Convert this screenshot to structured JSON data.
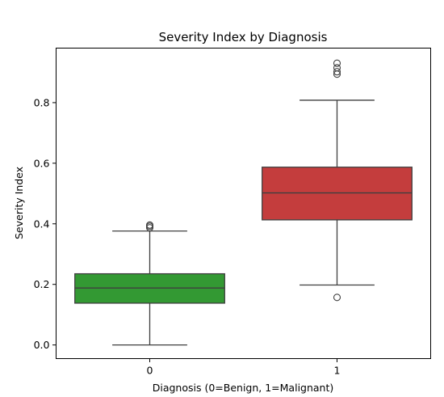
{
  "chart_data": {
    "type": "box",
    "title": "Severity Index by Diagnosis",
    "xlabel": "Diagnosis (0=Benign, 1=Malignant)",
    "ylabel": "Severity Index",
    "categories": [
      "0",
      "1"
    ],
    "ylim": [
      -0.045,
      0.98
    ],
    "yticks": [
      0.0,
      0.2,
      0.4,
      0.6,
      0.8
    ],
    "ytick_labels": [
      "0.0",
      "0.2",
      "0.4",
      "0.6",
      "0.8"
    ],
    "grid": false,
    "boxes": [
      {
        "category": "0",
        "color": "#339933",
        "whisker_low": 0.0,
        "q1": 0.138,
        "median": 0.188,
        "q3": 0.235,
        "whisker_high": 0.376,
        "outliers": [
          0.387,
          0.392,
          0.396
        ]
      },
      {
        "category": "1",
        "color": "#c43d3d",
        "whisker_low": 0.198,
        "q1": 0.413,
        "median": 0.502,
        "q3": 0.587,
        "whisker_high": 0.808,
        "outliers": [
          0.157,
          0.894,
          0.902,
          0.915,
          0.93
        ]
      }
    ]
  }
}
